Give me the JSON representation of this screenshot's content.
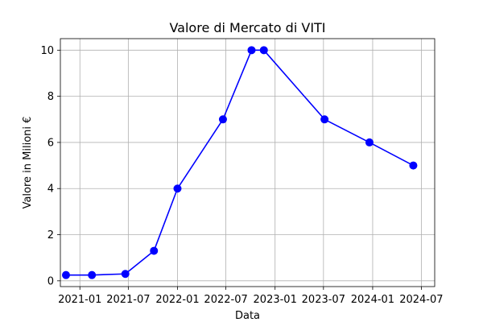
{
  "chart_data": {
    "type": "line",
    "title": "Valore di Mercato di VITI",
    "xlabel": "Data",
    "ylabel": "Valore in Milioni €",
    "x_ticks": [
      "2021-01",
      "2021-07",
      "2022-01",
      "2022-07",
      "2023-01",
      "2023-07",
      "2024-01",
      "2024-07"
    ],
    "y_ticks": [
      0,
      2,
      4,
      6,
      8,
      10
    ],
    "xlim": [
      "2020-10-20",
      "2024-08-20"
    ],
    "ylim": [
      -0.25,
      10.5
    ],
    "grid": true,
    "legend": "none",
    "series": [
      {
        "color": "#0000ff",
        "marker": "circle",
        "x": [
          "2020-11-10",
          "2021-02-15",
          "2021-06-20",
          "2021-10-05",
          "2022-01-01",
          "2022-06-20",
          "2022-10-05",
          "2022-11-20",
          "2023-07-05",
          "2023-12-20",
          "2024-06-01"
        ],
        "y": [
          0.25,
          0.25,
          0.3,
          1.3,
          4,
          7,
          10,
          10,
          7,
          6,
          5
        ]
      }
    ]
  }
}
